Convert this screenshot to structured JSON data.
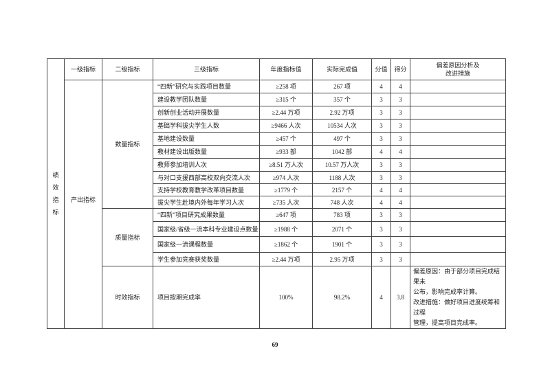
{
  "table": {
    "headers": [
      "一级指标",
      "二级指标",
      "三级指标",
      "年度指标值",
      "实际完成值",
      "分值",
      "得分",
      "偏差原因分析及改进措施"
    ],
    "header_note_lines": [
      "偏差原因分析及",
      "改进措施"
    ],
    "category": "绩效指标",
    "category_chars": [
      "绩",
      "效",
      "指",
      "标"
    ],
    "level1": "产出指标",
    "groups": [
      {
        "level2": "数量指标",
        "rows": [
          {
            "name": "“四新”研究与实践项目数量",
            "target": "≥258 项",
            "actual": "267 项",
            "weight": "4",
            "score": "4"
          },
          {
            "name": "建设教学团队数量",
            "target": "≥315 个",
            "actual": "357 个",
            "weight": "3",
            "score": "3"
          },
          {
            "name": "创新创业活动开展数量",
            "target": "≥2.44 万项",
            "actual": "2.92 万项",
            "weight": "3",
            "score": "3"
          },
          {
            "name": "基础学科拔尖学生人数",
            "target": "≥9466 人次",
            "actual": "10534 人次",
            "weight": "3",
            "score": "3"
          },
          {
            "name": "基地建设数量",
            "target": "≥457 个",
            "actual": "497 个",
            "weight": "3",
            "score": "3"
          },
          {
            "name": "教材建设出版数量",
            "target": "≥933 部",
            "actual": "1042 部",
            "weight": "4",
            "score": "4"
          },
          {
            "name": "教师参加培训人次",
            "target": "≥8.51 万人次",
            "actual": "10.57 万人次",
            "weight": "3",
            "score": "3"
          },
          {
            "name": "与对口支援西部高校双向交流人次",
            "target": "≥974 人次",
            "actual": "1188 人次",
            "weight": "3",
            "score": "3"
          },
          {
            "name": "支持学校教育教学改革项目数量",
            "target": "≥1779 个",
            "actual": "2157 个",
            "weight": "4",
            "score": "4"
          },
          {
            "name": "拔尖学生赴境内外每年学习人次",
            "target": "≥735 人次",
            "actual": "748 人次",
            "weight": "4",
            "score": "4"
          }
        ]
      },
      {
        "level2": "质量指标",
        "rows": [
          {
            "name": "“四新”项目研究成果数量",
            "target": "≥647 项",
            "actual": "783 项",
            "weight": "3",
            "score": "3"
          },
          {
            "name": "国家级/省级一流本科专业建设点数量",
            "target": "≥1988 个",
            "actual": "2071 个",
            "weight": "3",
            "score": "3"
          },
          {
            "name": "国家级一流课程数量",
            "target": "≥1862 个",
            "actual": "1901 个",
            "weight": "3",
            "score": "3"
          },
          {
            "name": "学生参加竞赛获奖数量",
            "target": "≥2.44 万项",
            "actual": "2.95 万项",
            "weight": "3",
            "score": "3"
          }
        ]
      },
      {
        "level2": "时效指标",
        "rows": [
          {
            "name": "项目按期完成率",
            "target": "100%",
            "actual": "98.2%",
            "weight": "4",
            "score": "3.8",
            "note_lines": [
              "偏差原因：由于部分项目完成结果未",
              "公布，影响完成率计算。",
              "改进措施：做好项目进度统筹和过程",
              "管理，提高项目完成率。"
            ]
          }
        ]
      }
    ]
  },
  "page_number": "69"
}
